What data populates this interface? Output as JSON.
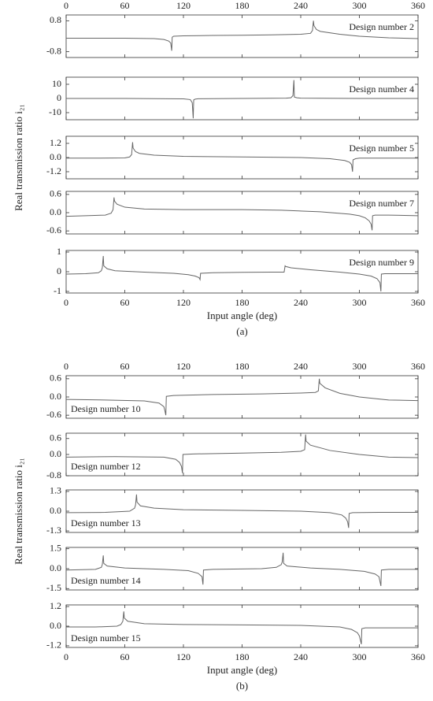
{
  "chart_data": [
    {
      "type": "line",
      "annotation": "Design number 2",
      "x": [
        0,
        30,
        60,
        90,
        100,
        105,
        107,
        108,
        108.5,
        110,
        120,
        150,
        180,
        210,
        240,
        250,
        252,
        253,
        253.5,
        256,
        260,
        280,
        300,
        330,
        360
      ],
      "series": [
        {
          "color": "#666666",
          "values": [
            -0.1,
            -0.1,
            -0.1,
            -0.12,
            -0.17,
            -0.25,
            -0.35,
            -0.75,
            -0.05,
            0,
            0.02,
            0.04,
            0.05,
            0.07,
            0.1,
            0.15,
            0.3,
            0.8,
            0.55,
            0.35,
            0.25,
            0.1,
            0,
            -0.08,
            -0.12
          ]
        }
      ],
      "xlim": [
        0,
        360
      ],
      "xticks": [
        0,
        60,
        120,
        180,
        240,
        300,
        360
      ],
      "ylim": [
        -1.1,
        1.1
      ],
      "yticks": [
        0.8,
        -0.8
      ]
    },
    {
      "type": "line",
      "annotation": "Design number 4",
      "x": [
        0,
        60,
        120,
        127,
        129,
        130,
        130.5,
        132,
        135,
        180,
        225,
        230,
        232,
        233,
        233.5,
        236,
        240,
        300,
        360
      ],
      "series": [
        {
          "color": "#666666",
          "values": [
            0,
            0,
            -0.3,
            -0.8,
            -3,
            -14,
            -1,
            -0.5,
            -0.2,
            0,
            0.2,
            0.5,
            2,
            13,
            1,
            0.5,
            0.2,
            0,
            0
          ]
        }
      ],
      "xlim": [
        0,
        360
      ],
      "xticks": [
        0,
        60,
        120,
        180,
        240,
        300,
        360
      ],
      "ylim": [
        -15,
        15
      ],
      "yticks": [
        10,
        0,
        -10
      ]
    },
    {
      "type": "line",
      "annotation": "Design number 5",
      "ylabel": "Real transmission ratio i₂₁",
      "x": [
        0,
        30,
        60,
        65,
        67,
        68,
        68.5,
        71,
        75,
        90,
        120,
        180,
        240,
        270,
        285,
        290,
        292,
        293,
        293.5,
        296,
        300,
        330,
        360
      ],
      "series": [
        {
          "color": "#666666",
          "values": [
            -0.05,
            -0.05,
            -0.03,
            0.05,
            0.25,
            1.3,
            0.8,
            0.5,
            0.35,
            0.2,
            0.1,
            0.05,
            0,
            -0.1,
            -0.25,
            -0.4,
            -0.6,
            -1.2,
            -0.2,
            -0.1,
            -0.05,
            -0.05,
            -0.05
          ]
        }
      ],
      "xlim": [
        0,
        360
      ],
      "xticks": [
        0,
        60,
        120,
        180,
        240,
        300,
        360
      ],
      "ylim": [
        -1.8,
        1.8
      ],
      "yticks": [
        1.2,
        {
          "value": 0,
          "label": "0.0"
        },
        -1.2
      ]
    },
    {
      "type": "line",
      "annotation": "Design number 7",
      "x": [
        0,
        20,
        40,
        46,
        48,
        49,
        49.5,
        52,
        60,
        80,
        120,
        180,
        220,
        260,
        290,
        300,
        306,
        310,
        312,
        313,
        313.5,
        316,
        330,
        360
      ],
      "series": [
        {
          "color": "#666666",
          "values": [
            -0.12,
            -0.1,
            -0.08,
            -0.02,
            0.1,
            0.5,
            0.38,
            0.28,
            0.18,
            0.12,
            0.1,
            0.1,
            0.08,
            0.03,
            -0.05,
            -0.1,
            -0.17,
            -0.27,
            -0.38,
            -0.58,
            -0.1,
            -0.08,
            -0.08,
            -0.1
          ]
        }
      ],
      "xlim": [
        0,
        360
      ],
      "xticks": [
        0,
        60,
        120,
        180,
        240,
        300,
        360
      ],
      "ylim": [
        -0.7,
        0.7
      ],
      "yticks": [
        0.6,
        {
          "value": 0,
          "label": "0.0"
        },
        -0.6
      ]
    },
    {
      "type": "line",
      "annotation": "Design number 9",
      "xlabel": "Input angle (deg)",
      "caption": "(a)",
      "x": [
        0,
        20,
        33,
        36,
        37,
        38,
        38.5,
        42,
        50,
        80,
        110,
        125,
        132,
        136,
        137,
        137.5,
        150,
        180,
        210,
        223,
        224,
        224.5,
        230,
        250,
        280,
        300,
        312,
        318,
        321,
        322,
        322.5,
        326,
        340,
        360
      ],
      "series": [
        {
          "color": "#666666",
          "values": [
            -0.12,
            -0.1,
            -0.05,
            0.05,
            0.2,
            0.8,
            0.3,
            0.15,
            0.05,
            -0.02,
            -0.08,
            -0.15,
            -0.22,
            -0.3,
            -0.4,
            -0.08,
            -0.05,
            -0.03,
            -0.02,
            -0.02,
            0.3,
            0.27,
            0.2,
            0.1,
            -0.02,
            -0.12,
            -0.22,
            -0.35,
            -0.55,
            -1,
            -0.12,
            -0.1,
            -0.1,
            -0.1
          ]
        }
      ],
      "xlim": [
        0,
        360
      ],
      "xticks": [
        0,
        60,
        120,
        180,
        240,
        300,
        360
      ],
      "ylim": [
        -1.08,
        1.08
      ],
      "yticks": [
        1,
        0,
        -1
      ]
    },
    {
      "type": "line",
      "annotation": "Design number 10",
      "x": [
        0,
        40,
        80,
        95,
        100,
        101,
        102,
        102.5,
        110,
        150,
        200,
        240,
        255,
        258,
        259,
        259.5,
        265,
        280,
        300,
        330,
        360
      ],
      "series": [
        {
          "color": "#666666",
          "values": [
            -0.08,
            -0.1,
            -0.13,
            -0.2,
            -0.32,
            -0.45,
            -0.6,
            0.02,
            0.05,
            0.08,
            0.1,
            0.13,
            0.15,
            0.2,
            0.6,
            0.45,
            0.3,
            0.12,
            0,
            -0.1,
            -0.12
          ]
        }
      ],
      "xlim": [
        0,
        360
      ],
      "xticks": [
        0,
        60,
        120,
        180,
        240,
        300,
        360
      ],
      "ylim": [
        -0.7,
        0.7
      ],
      "yticks": [
        0.6,
        {
          "value": 0,
          "label": "0.0"
        },
        -0.6
      ]
    },
    {
      "type": "line",
      "annotation": "Design number 12",
      "x": [
        0,
        50,
        100,
        112,
        116,
        118,
        119,
        119.5,
        130,
        180,
        220,
        240,
        244,
        245,
        245.5,
        250,
        270,
        300,
        330,
        360
      ],
      "series": [
        {
          "color": "#666666",
          "values": [
            -0.1,
            -0.08,
            -0.1,
            -0.18,
            -0.3,
            -0.45,
            -0.7,
            0,
            0.02,
            0.05,
            0.08,
            0.12,
            0.18,
            0.75,
            0.5,
            0.35,
            0.15,
            0,
            -0.1,
            -0.12
          ]
        }
      ],
      "xlim": [
        0,
        360
      ],
      "xticks": [
        0,
        60,
        120,
        180,
        240,
        300,
        360
      ],
      "ylim": [
        -0.8,
        0.8
      ],
      "yticks": [
        0.6,
        {
          "value": 0,
          "label": "0.0"
        },
        -0.8
      ]
    },
    {
      "type": "line",
      "annotation": "Design number 13",
      "ylabel": "Real transmission ratio i₂₁",
      "x": [
        0,
        40,
        65,
        70,
        71,
        72,
        72.5,
        76,
        90,
        120,
        180,
        240,
        270,
        282,
        286,
        288,
        289,
        289.5,
        293,
        320,
        360
      ],
      "series": [
        {
          "color": "#666666",
          "values": [
            -0.1,
            -0.08,
            0,
            0.2,
            0.4,
            1.1,
            0.6,
            0.35,
            0.2,
            0.1,
            0.05,
            0,
            -0.1,
            -0.25,
            -0.45,
            -0.7,
            -1.1,
            -0.15,
            -0.1,
            -0.08,
            -0.08
          ]
        }
      ],
      "xlim": [
        0,
        360
      ],
      "xticks": [
        0,
        60,
        120,
        180,
        240,
        300,
        360
      ],
      "ylim": [
        -1.4,
        1.4
      ],
      "yticks": [
        1.3,
        {
          "value": 0,
          "label": "0.0"
        },
        -1.3
      ]
    },
    {
      "type": "line",
      "annotation": "Design number 14",
      "x": [
        0,
        30,
        36,
        37,
        38,
        38.5,
        42,
        60,
        100,
        125,
        135,
        139,
        140,
        140.5,
        150,
        200,
        215,
        220,
        221,
        222,
        222.5,
        226,
        250,
        280,
        305,
        316,
        320,
        322,
        322.5,
        330,
        360
      ],
      "series": [
        {
          "color": "#666666",
          "values": [
            -0.1,
            -0.05,
            0.1,
            0.3,
            1,
            0.4,
            0.2,
            0.05,
            -0.05,
            -0.15,
            -0.35,
            -0.6,
            -1.2,
            -0.1,
            -0.05,
            0,
            0.1,
            0.3,
            0.5,
            1.2,
            0.4,
            0.2,
            0.05,
            -0.05,
            -0.2,
            -0.4,
            -0.6,
            -1.3,
            -0.1,
            -0.05,
            -0.05
          ]
        }
      ],
      "xlim": [
        0,
        360
      ],
      "xticks": [
        0,
        60,
        120,
        180,
        240,
        300,
        360
      ],
      "ylim": [
        -1.6,
        1.6
      ],
      "yticks": [
        1.5,
        {
          "value": 0,
          "label": "0.0"
        },
        -1.5
      ]
    },
    {
      "type": "line",
      "annotation": "Design number 15",
      "xlabel": "Input angle (deg)",
      "caption": "(b)",
      "x": [
        0,
        30,
        52,
        56,
        58,
        59,
        59.5,
        63,
        80,
        120,
        180,
        240,
        280,
        292,
        298,
        300,
        302,
        302.5,
        306,
        330,
        360
      ],
      "series": [
        {
          "color": "#666666",
          "values": [
            -0.05,
            -0.05,
            0,
            0.1,
            0.3,
            0.9,
            0.5,
            0.3,
            0.15,
            0.1,
            0.08,
            0.05,
            -0.05,
            -0.2,
            -0.4,
            -0.6,
            -1.1,
            -0.15,
            -0.1,
            -0.1,
            -0.1
          ]
        }
      ],
      "xlim": [
        0,
        360
      ],
      "xticks": [
        0,
        60,
        120,
        180,
        240,
        300,
        360
      ],
      "ylim": [
        -1.3,
        1.3
      ],
      "yticks": [
        1.2,
        {
          "value": 0,
          "label": "0.0"
        },
        -1.2
      ]
    }
  ]
}
